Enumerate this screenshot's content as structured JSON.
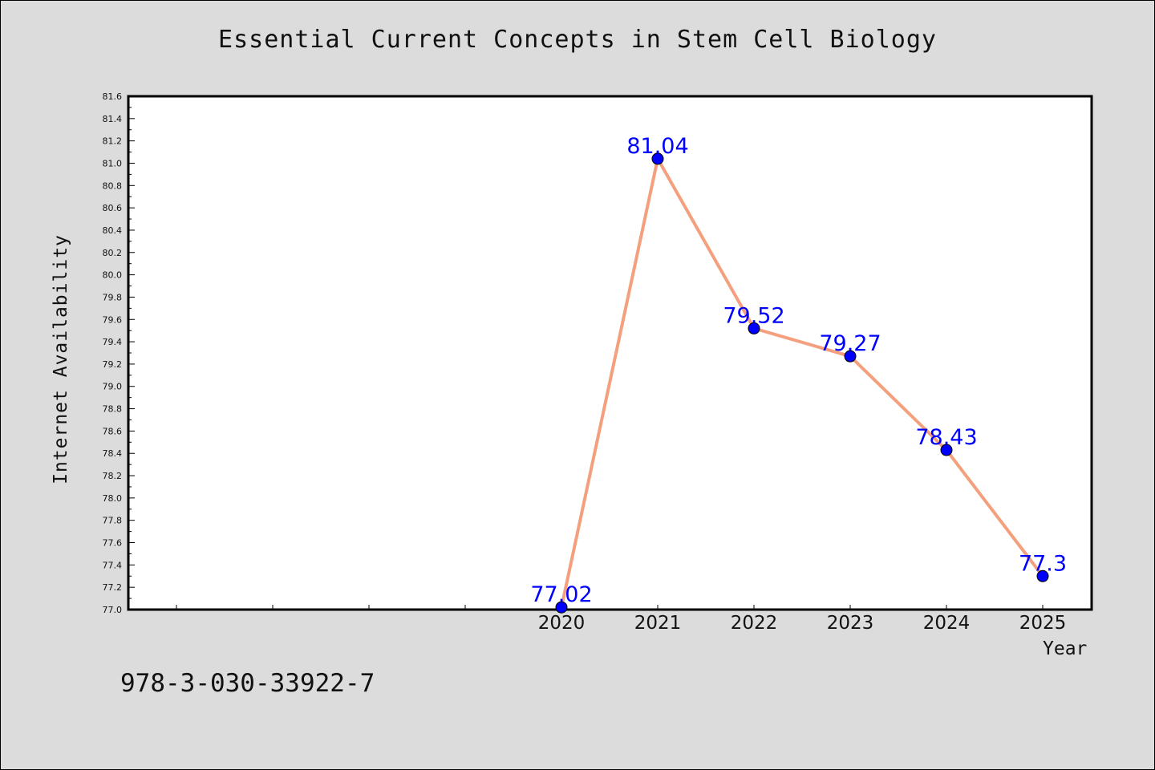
{
  "chart_data": {
    "type": "line",
    "title": "Essential Current Concepts in Stem Cell Biology",
    "xlabel": "Year",
    "ylabel": "Internet Availability",
    "x": [
      "2020",
      "2021",
      "2022",
      "2023",
      "2024",
      "2025"
    ],
    "values": [
      77.02,
      81.04,
      79.52,
      79.27,
      78.43,
      77.3
    ],
    "data_labels": [
      "77.02",
      "81.04",
      "79.52",
      "79.27",
      "78.43",
      "77.3"
    ],
    "ylim": [
      77.0,
      81.6
    ],
    "y_ticks": [
      "77.0",
      "77.2",
      "77.4",
      "77.6",
      "77.8",
      "78.0",
      "78.2",
      "78.4",
      "78.6",
      "78.8",
      "79.0",
      "79.2",
      "79.4",
      "79.6",
      "79.8",
      "80.0",
      "80.2",
      "80.4",
      "80.6",
      "80.8",
      "81.0",
      "81.2",
      "81.4",
      "81.6"
    ],
    "grid": false,
    "legend": "none",
    "line_color": "#f4a07e",
    "marker_color": "#0000ff",
    "label_color": "#0000ff",
    "background": "#dcdcdc",
    "plot_background": "#ffffff"
  },
  "footer_text": "978-3-030-33922-7"
}
